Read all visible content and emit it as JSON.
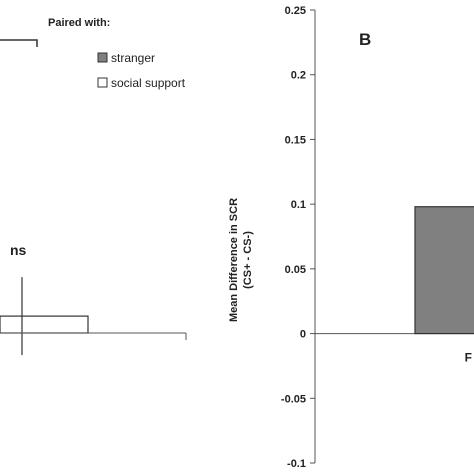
{
  "legend": {
    "title": "Paired with:",
    "items": [
      {
        "label": "stranger",
        "color": "#808080"
      },
      {
        "label": "social support",
        "color": "#ffffff"
      }
    ]
  },
  "chart_data": [
    {
      "type": "bar",
      "title": "",
      "annotation": "ns",
      "categories": [
        ""
      ],
      "series": [
        {
          "name": "social support",
          "values": [
            0.013
          ],
          "error": [
            0.03
          ]
        }
      ]
    },
    {
      "type": "bar",
      "panel_label": "B",
      "title": "",
      "xlabel": "",
      "ylabel_lines": [
        "Mean Difference in SCR",
        "(CS+ - CS-)"
      ],
      "ylim": [
        -0.1,
        0.25
      ],
      "yticks": [
        "0.25",
        "0.2",
        "0.15",
        "0.1",
        "0.05",
        "0",
        "-0.05",
        "-0.1"
      ],
      "categories": [
        "F"
      ],
      "series": [
        {
          "name": "stranger",
          "values": [
            0.098
          ],
          "color": "#808080"
        }
      ]
    }
  ]
}
